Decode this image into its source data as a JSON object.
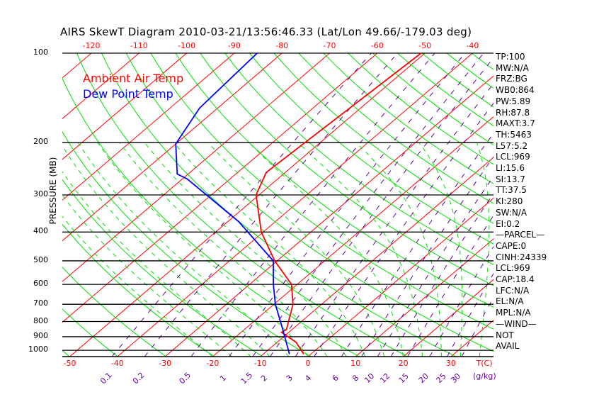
{
  "title": "AIRS SkewT Diagram 2010-03-21/13:56:46.33 (Lat/Lon 49.66/-179.03 deg)",
  "legend": [
    {
      "label": "Ambient Air Temp",
      "color": "#ff0000"
    },
    {
      "label": "Dew Point Temp",
      "color": "#0000ff"
    }
  ],
  "info_panel": [
    "TP:100",
    "MW:N/A",
    "FRZ:BG",
    "WB0:864",
    "PW:5.89",
    "RH:87.8",
    "MAXT:3.7",
    "TH:5463",
    "L57:5.2",
    "LCL:969",
    "LI:15.6",
    "SI:13.7",
    "TT:37.5",
    "KI:280",
    "SW:N/A",
    "EI:0.2",
    "—PARCEL—",
    "CAPE:0",
    "CINH:24339",
    "LCL:969",
    "CAP:18.4",
    "LFC:N/A",
    "EL:N/A",
    "MPL:N/A",
    "—WIND—",
    "NOT",
    "AVAIL"
  ],
  "chart_data": {
    "type": "line",
    "title": "AIRS SkewT Diagram 2010-03-21/13:56:46.33 (Lat/Lon 49.66/-179.03 deg)",
    "ylabel": "PRESSURE (MB)",
    "xlabel": "T(C)",
    "mixing_ratio_label": "(g/kg)",
    "ylim": [
      1050,
      100
    ],
    "pressure_ticks": [
      100,
      200,
      300,
      400,
      500,
      600,
      700,
      800,
      900,
      1000
    ],
    "bottom_temp_ticks": [
      -50,
      -40,
      -30,
      -20,
      -10,
      0,
      10,
      20,
      30
    ],
    "top_temp_ticks": [
      -120,
      -110,
      -100,
      -90,
      -80,
      -70,
      -60,
      -50,
      -40
    ],
    "mixing_ratio_ticks": [
      "0.1",
      "0.2",
      "0.5",
      "1",
      "1.5",
      "2",
      "3",
      "4",
      "6",
      "8",
      "10",
      "12",
      "15",
      "20",
      "25",
      "30"
    ],
    "grid": true,
    "legend_placement": "top-left",
    "colors": {
      "isotherm": "#ff0000",
      "dry_adiabat": "#00dd00",
      "moist_adiabat": "#00dd00",
      "mixing_ratio": "#660099",
      "temp": "#ff0000",
      "dewpoint": "#0000ff"
    },
    "series": [
      {
        "name": "Ambient Air Temp",
        "pressure": [
          100,
          252,
          300,
          400,
          500,
          600,
          700,
          850,
          870,
          940,
          1030
        ],
        "temperature": [
          -50.8,
          -54,
          -50.6,
          -40.4,
          -30.5,
          -21.2,
          -16,
          -11.2,
          -11.5,
          -6,
          -1.5
        ]
      },
      {
        "name": "Dew Point Temp",
        "pressure": [
          100,
          153,
          202,
          255,
          265,
          300,
          369,
          500,
          600,
          700,
          850,
          1030
        ],
        "temperature": [
          -85.2,
          -83.8,
          -80,
          -72.3,
          -69,
          -61,
          -47.7,
          -30.8,
          -25,
          -19.7,
          -12,
          -4.5
        ]
      }
    ]
  }
}
